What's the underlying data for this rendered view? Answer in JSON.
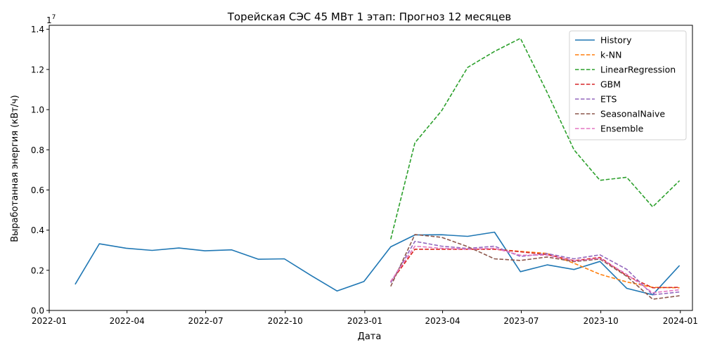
{
  "chart_data": {
    "type": "line",
    "title": "Торейская СЭС 45 МВт 1 этап: Прогноз 12 месяцев",
    "xlabel": "Дата",
    "ylabel": "Выработанная энергия (кВт/ч)",
    "y_multiplier": "1e7",
    "xlim": [
      "2022-01-01",
      "2024-01-15"
    ],
    "ylim": [
      0,
      14200000
    ],
    "x_ticks": [
      {
        "date": "2022-01-01",
        "label": "2022-01"
      },
      {
        "date": "2022-04-01",
        "label": "2022-04"
      },
      {
        "date": "2022-07-01",
        "label": "2022-07"
      },
      {
        "date": "2022-10-01",
        "label": "2022-10"
      },
      {
        "date": "2023-01-01",
        "label": "2023-01"
      },
      {
        "date": "2023-04-01",
        "label": "2023-04"
      },
      {
        "date": "2023-07-01",
        "label": "2023-07"
      },
      {
        "date": "2023-10-01",
        "label": "2023-10"
      },
      {
        "date": "2024-01-01",
        "label": "2024-01"
      }
    ],
    "y_ticks": [
      {
        "value": 0,
        "label": "0.0"
      },
      {
        "value": 2000000,
        "label": "0.2"
      },
      {
        "value": 4000000,
        "label": "0.4"
      },
      {
        "value": 6000000,
        "label": "0.6"
      },
      {
        "value": 8000000,
        "label": "0.8"
      },
      {
        "value": 10000000,
        "label": "1.0"
      },
      {
        "value": 12000000,
        "label": "1.2"
      },
      {
        "value": 14000000,
        "label": "1.4"
      }
    ],
    "grid": false,
    "legend_position": "top-right",
    "series": [
      {
        "name": "History",
        "color": "#1f77b4",
        "dashed": false,
        "x": [
          "2022-01-31",
          "2022-02-28",
          "2022-03-31",
          "2022-04-30",
          "2022-05-31",
          "2022-06-30",
          "2022-07-31",
          "2022-08-31",
          "2022-09-30",
          "2022-10-31",
          "2022-11-30",
          "2022-12-31",
          "2023-01-31",
          "2023-02-28",
          "2023-03-31",
          "2023-04-30",
          "2023-05-31",
          "2023-06-30",
          "2023-07-31",
          "2023-08-31",
          "2023-09-30",
          "2023-10-31",
          "2023-11-30",
          "2023-12-31"
        ],
        "values": [
          1300000,
          3320000,
          3100000,
          2990000,
          3110000,
          2970000,
          3020000,
          2550000,
          2570000,
          1740000,
          970000,
          1440000,
          3170000,
          3760000,
          3770000,
          3690000,
          3900000,
          1930000,
          2270000,
          2040000,
          2440000,
          1100000,
          780000,
          2240000
        ]
      },
      {
        "name": "k-NN",
        "color": "#ff7f0e",
        "dashed": true,
        "x": [
          "2023-01-31",
          "2023-02-28",
          "2023-03-31",
          "2023-04-30",
          "2023-05-31",
          "2023-06-30",
          "2023-07-31",
          "2023-08-31",
          "2023-09-30",
          "2023-10-31",
          "2023-11-30",
          "2023-12-31"
        ],
        "values": [
          1420000,
          3050000,
          3050000,
          3050000,
          3050000,
          2940000,
          2840000,
          2350000,
          1800000,
          1420000,
          1150000,
          1130000
        ]
      },
      {
        "name": "LinearRegression",
        "color": "#2ca02c",
        "dashed": true,
        "x": [
          "2023-01-31",
          "2023-02-28",
          "2023-03-31",
          "2023-04-30",
          "2023-05-31",
          "2023-06-30",
          "2023-07-31",
          "2023-08-31",
          "2023-09-30",
          "2023-10-31",
          "2023-11-30",
          "2023-12-31"
        ],
        "values": [
          3550000,
          8350000,
          9950000,
          12100000,
          12900000,
          13550000,
          10850000,
          8000000,
          6480000,
          6630000,
          5160000,
          6460000
        ]
      },
      {
        "name": "GBM",
        "color": "#d62728",
        "dashed": true,
        "x": [
          "2023-01-31",
          "2023-02-28",
          "2023-03-31",
          "2023-04-30",
          "2023-05-31",
          "2023-06-30",
          "2023-07-31",
          "2023-08-31",
          "2023-09-30",
          "2023-10-31",
          "2023-11-30",
          "2023-12-31"
        ],
        "values": [
          1420000,
          3050000,
          3050000,
          3050000,
          3050000,
          2920000,
          2780000,
          2480000,
          2640000,
          1730000,
          1130000,
          1150000
        ]
      },
      {
        "name": "ETS",
        "color": "#9467bd",
        "dashed": true,
        "x": [
          "2023-01-31",
          "2023-02-28",
          "2023-03-31",
          "2023-04-30",
          "2023-05-31",
          "2023-06-30",
          "2023-07-31",
          "2023-08-31",
          "2023-09-30",
          "2023-10-31",
          "2023-11-30",
          "2023-12-31"
        ],
        "values": [
          1380000,
          3440000,
          3200000,
          3090000,
          3200000,
          2690000,
          2830000,
          2570000,
          2770000,
          2050000,
          780000,
          920000
        ]
      },
      {
        "name": "SeasonalNaive",
        "color": "#8c564b",
        "dashed": true,
        "x": [
          "2023-01-31",
          "2023-02-28",
          "2023-03-31",
          "2023-04-30",
          "2023-05-31",
          "2023-06-30",
          "2023-07-31",
          "2023-08-31",
          "2023-09-30",
          "2023-10-31",
          "2023-11-30",
          "2023-12-31"
        ],
        "values": [
          1200000,
          3780000,
          3640000,
          3180000,
          2570000,
          2490000,
          2660000,
          2430000,
          2560000,
          1700000,
          560000,
          730000
        ]
      },
      {
        "name": "Ensemble",
        "color": "#e377c2",
        "dashed": true,
        "x": [
          "2023-01-31",
          "2023-02-28",
          "2023-03-31",
          "2023-04-30",
          "2023-05-31",
          "2023-06-30",
          "2023-07-31",
          "2023-08-31",
          "2023-09-30",
          "2023-10-31",
          "2023-11-30",
          "2023-12-31"
        ],
        "values": [
          1450000,
          3200000,
          3100000,
          3050000,
          3100000,
          2750000,
          2760000,
          2470000,
          2600000,
          1800000,
          880000,
          1030000
        ]
      }
    ]
  }
}
